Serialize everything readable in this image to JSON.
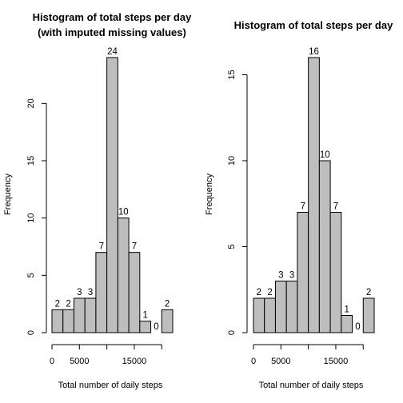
{
  "chart_data": [
    {
      "type": "bar",
      "title_lines": [
        "Histogram of total steps per day",
        "(with imputed missing values)"
      ],
      "xlabel": "Total number of daily steps",
      "ylabel": "Frequency",
      "bin_edges": [
        0,
        2000,
        4000,
        6000,
        8000,
        10000,
        12000,
        14000,
        16000,
        18000,
        20000,
        22000
      ],
      "values": [
        2,
        2,
        3,
        3,
        7,
        24,
        10,
        7,
        1,
        0,
        2
      ],
      "x_ticks": [
        0,
        5000,
        15000
      ],
      "x_tick_labels": [
        "0",
        "5000",
        "15000"
      ],
      "x_axis_range": [
        0,
        20000
      ],
      "y_ticks": [
        0,
        5,
        10,
        15,
        20
      ],
      "y_tick_labels": [
        "0",
        "5",
        "10",
        "15",
        "20"
      ],
      "y_axis_range": [
        0,
        20
      ],
      "ylim": [
        0,
        24
      ],
      "bar_fill": "#bebebe",
      "bar_stroke": "#000000",
      "grid": false
    },
    {
      "type": "bar",
      "title_lines": [
        "Histogram of total steps per day"
      ],
      "xlabel": "Total number of daily steps",
      "ylabel": "Frequency",
      "bin_edges": [
        0,
        2000,
        4000,
        6000,
        8000,
        10000,
        12000,
        14000,
        16000,
        18000,
        20000,
        22000
      ],
      "values": [
        2,
        2,
        3,
        3,
        7,
        16,
        10,
        7,
        1,
        0,
        2
      ],
      "x_ticks": [
        0,
        5000,
        15000
      ],
      "x_tick_labels": [
        "0",
        "5000",
        "15000"
      ],
      "x_axis_range": [
        0,
        20000
      ],
      "y_ticks": [
        0,
        5,
        10,
        15
      ],
      "y_tick_labels": [
        "0",
        "5",
        "10",
        "15"
      ],
      "y_axis_range": [
        0,
        15
      ],
      "ylim": [
        0,
        16
      ],
      "bar_fill": "#bebebe",
      "bar_stroke": "#000000",
      "grid": false
    }
  ]
}
